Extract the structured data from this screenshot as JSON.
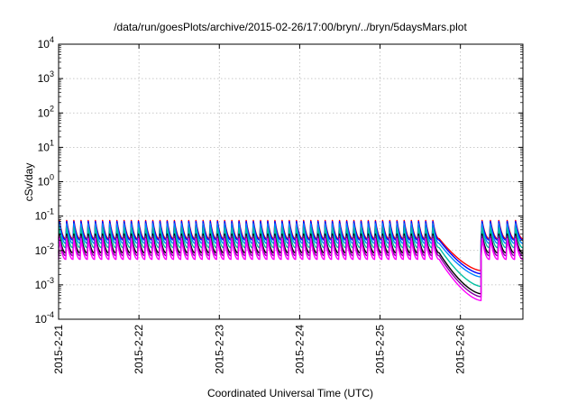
{
  "chart_data": {
    "type": "line",
    "title": "/data/run/goesPlots/archive/2015-02-26/17:00/bryn/../bryn/5daysMars.plot",
    "xlabel": "Coordinated Universal Time (UTC)",
    "ylabel": "cSv/day",
    "yscale": "log",
    "ylim": [
      0.0001,
      10000
    ],
    "xlim": [
      "2015-02-21T00:00",
      "2015-02-26T18:40"
    ],
    "grid": true,
    "legend": "none",
    "ytick_values": [
      -4,
      -3,
      -2,
      -1,
      0,
      1,
      2,
      3,
      4
    ],
    "ytick_labels": [
      {
        "base": "10",
        "exp": "-4"
      },
      {
        "base": "10",
        "exp": "-3"
      },
      {
        "base": "10",
        "exp": "-2"
      },
      {
        "base": "10",
        "exp": "-1"
      },
      {
        "base": "10",
        "exp": "0"
      },
      {
        "base": "10",
        "exp": "1"
      },
      {
        "base": "10",
        "exp": "2"
      },
      {
        "base": "10",
        "exp": "3"
      },
      {
        "base": "10",
        "exp": "4"
      }
    ],
    "xtick_labels": [
      "2015-2-21",
      "2015-2-22",
      "2015-2-23",
      "2015-2-24",
      "2015-2-25",
      "2015-2-26"
    ],
    "cycles": [
      {
        "start": "2015-02-21T00:00",
        "end": "2015-02-25T17:40",
        "count": 53,
        "pattern": "daily sawtooth: sharp rise then decay"
      },
      {
        "start": "2015-02-25T17:40",
        "end": "2015-02-26T06:10",
        "pattern": "smooth decline"
      },
      {
        "start": "2015-02-26T06:10",
        "end": "2015-02-26T18:40",
        "count": 5,
        "pattern": "sawtooth resumes"
      }
    ],
    "series": [
      {
        "color": "#ff0000",
        "peak": 0.075,
        "trough": 0.022,
        "decline_end": 0.0026
      },
      {
        "color": "#0000ff",
        "peak": 0.07,
        "trough": 0.02,
        "decline_end": 0.0021
      },
      {
        "color": "#0088ff",
        "peak": 0.06,
        "trough": 0.016,
        "decline_end": 0.0017
      },
      {
        "color": "#00c0a0",
        "peak": 0.045,
        "trough": 0.012,
        "decline_end": 0.0009
      },
      {
        "color": "#000000",
        "peak": 0.03,
        "trough": 0.0085,
        "decline_end": 0.00055
      },
      {
        "color": "#8000a0",
        "peak": 0.026,
        "trough": 0.007,
        "decline_end": 0.00045
      },
      {
        "color": "#ff00ff",
        "peak": 0.022,
        "trough": 0.0055,
        "decline_end": 0.00035
      }
    ]
  }
}
